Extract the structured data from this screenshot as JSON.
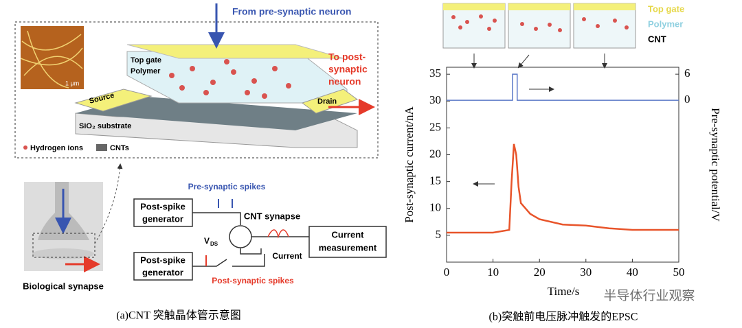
{
  "diagram": {
    "from_pre": "From pre-synaptic neuron",
    "to_post": [
      "To post-",
      "synaptic",
      "neuron"
    ],
    "top_gate": "Top gate",
    "polymer": "Polymer",
    "source": "Source",
    "drain": "Drain",
    "substrate": "SiO₂ substrate",
    "hydrogen": "Hydrogen ions",
    "cnts": "CNTs",
    "scale": "1 μm",
    "bio": "Biological synapse",
    "pre_spikes": "Pre-synaptic spikes",
    "gen1": [
      "Post-spike",
      "generator"
    ],
    "gen2": [
      "Post-spike",
      "generator"
    ],
    "cnt_synapse": "CNT synapse",
    "vds": [
      "V",
      "DS"
    ],
    "measure": [
      "Current",
      "measurement"
    ],
    "current": "Current",
    "post_spikes": "Post-synaptic spikes",
    "caption": "(a)CNT 突触晶体管示意图"
  },
  "inset": {
    "legend": [
      "Top gate",
      "Polymer",
      "CNT"
    ]
  },
  "chart_data": {
    "type": "line",
    "caption": "(b)突触前电压脉冲触发的EPSC",
    "xlabel": "Time/s",
    "ylabel": "Post-synaptic current/nA",
    "y2label": "Pre-synaptic potential/V",
    "watermark": "半导体行业观察",
    "xlim": [
      0,
      50
    ],
    "xticks": [
      0,
      10,
      20,
      30,
      40,
      50
    ],
    "ylim": [
      0,
      36.3
    ],
    "yticks": [
      5,
      10,
      15,
      20,
      25,
      30,
      35
    ],
    "y2lim": [
      -37.3,
      7.6
    ],
    "y2ticks": [
      0,
      6
    ],
    "series": [
      {
        "color": "#e8542a",
        "x": [
          0,
          5,
          10,
          13.5,
          14,
          14.5,
          15,
          15.5,
          16,
          18,
          20,
          25,
          30,
          35,
          40,
          45,
          50
        ],
        "values": [
          5.5,
          5.5,
          5.5,
          6,
          15,
          22,
          20,
          14,
          11,
          9,
          8,
          7,
          6.8,
          6.3,
          6,
          6,
          6
        ]
      },
      {
        "color": "#5a78c8",
        "axis": "y2",
        "x": [
          0,
          14.2,
          14.2,
          15.2,
          15.2,
          50
        ],
        "values": [
          0,
          0,
          6,
          6,
          0,
          0
        ]
      }
    ]
  }
}
